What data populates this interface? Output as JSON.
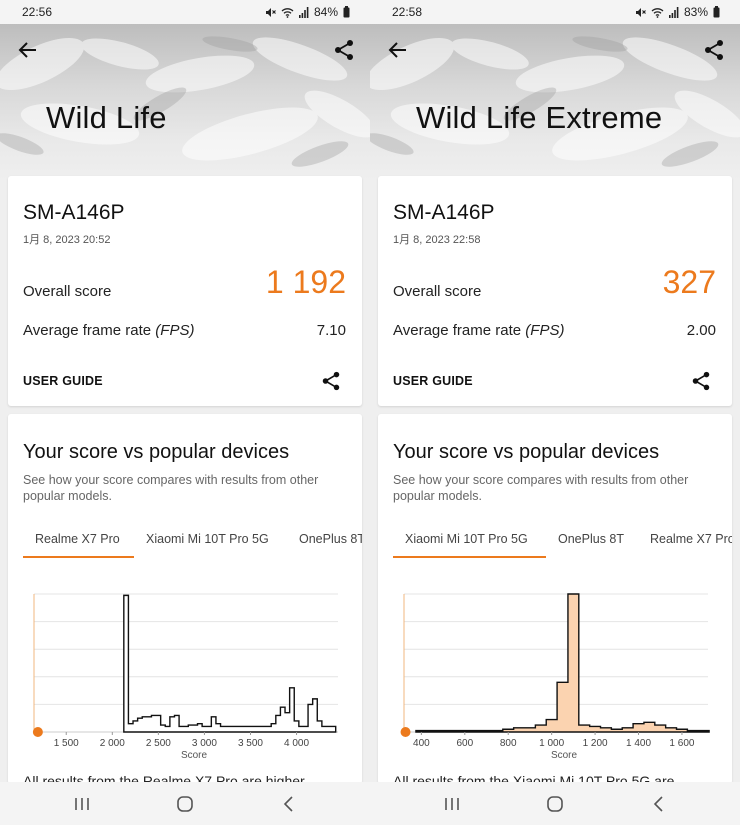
{
  "phones": [
    {
      "status": {
        "time": "22:56",
        "battery": "84%"
      },
      "hero": {
        "title": "Wild Life"
      },
      "result": {
        "device": "SM-A146P",
        "date": "1月 8, 2023 20:52",
        "overall_label": "Overall score",
        "overall_score": "1 192",
        "fps_label_prefix": "Average frame rate ",
        "fps_label_unit": "(FPS)",
        "fps_value": "7.10",
        "user_guide": "USER GUIDE"
      },
      "comparison": {
        "title": "Your score vs popular devices",
        "description": "See how your score compares with results from other popular models.",
        "tabs": [
          "Realme X7 Pro",
          "Xiaomi Mi 10T Pro 5G",
          "OnePlus 8T"
        ],
        "active_tab": 0,
        "xlabel": "Score",
        "result_text": "All results from the Realme X7 Pro are higher"
      },
      "chart_data": {
        "type": "area",
        "xlabel": "Score",
        "xlim": [
          1150,
          4450
        ],
        "ylim": [
          0,
          100
        ],
        "ticks": [
          1500,
          2000,
          2500,
          3000,
          3500,
          4000
        ],
        "tick_labels": [
          "1 500",
          "2 000",
          "2 500",
          "3 000",
          "3 500",
          "4 000"
        ],
        "marker_score": 1192,
        "x": [
          2150,
          2200,
          2250,
          2300,
          2350,
          2400,
          2450,
          2500,
          2550,
          2600,
          2650,
          2700,
          2750,
          2800,
          2850,
          2900,
          2950,
          3000,
          3050,
          3100,
          3150,
          3200,
          3250,
          3300,
          3350,
          3400,
          3450,
          3500,
          3550,
          3600,
          3650,
          3700,
          3750,
          3800,
          3850,
          3900,
          3950,
          4000,
          4050,
          4100,
          4150,
          4200,
          4250,
          4300,
          4350,
          4400
        ],
        "values": [
          99,
          6,
          8,
          10,
          11,
          11,
          12,
          12,
          5,
          4,
          11,
          12,
          4,
          4,
          5,
          5,
          6,
          4,
          4,
          11,
          6,
          4,
          4,
          4,
          4,
          4,
          4,
          4,
          4,
          4,
          4,
          4,
          6,
          12,
          18,
          14,
          32,
          8,
          4,
          4,
          20,
          24,
          8,
          4,
          4,
          4
        ],
        "colors": {
          "line": "#111111",
          "fill": "#ffffff",
          "marker": "#ec7a1d",
          "axis": "#f0b77f"
        }
      }
    },
    {
      "status": {
        "time": "22:58",
        "battery": "83%"
      },
      "hero": {
        "title": "Wild Life Extreme"
      },
      "result": {
        "device": "SM-A146P",
        "date": "1月 8, 2023 22:58",
        "overall_label": "Overall score",
        "overall_score": "327",
        "fps_label_prefix": "Average frame rate ",
        "fps_label_unit": "(FPS)",
        "fps_value": "2.00",
        "user_guide": "USER GUIDE"
      },
      "comparison": {
        "title": "Your score vs popular devices",
        "description": "See how your score compares with results from other popular models.",
        "tabs": [
          "Xiaomi Mi 10T Pro 5G",
          "OnePlus 8T",
          "Realme X7 Pro"
        ],
        "active_tab": 0,
        "xlabel": "Score",
        "result_text": "All results from the Xiaomi Mi 10T Pro 5G are"
      },
      "chart_data": {
        "type": "area",
        "xlabel": "Score",
        "xlim": [
          320,
          1720
        ],
        "ylim": [
          0,
          100
        ],
        "ticks": [
          400,
          600,
          800,
          1000,
          1200,
          1400,
          1600
        ],
        "tick_labels": [
          "400",
          "600",
          "800",
          "1 000",
          "1 200",
          "1 400",
          "1 600"
        ],
        "marker_score": 327,
        "x": [
          400,
          450,
          500,
          550,
          600,
          650,
          700,
          750,
          800,
          850,
          900,
          950,
          1000,
          1050,
          1100,
          1150,
          1200,
          1250,
          1300,
          1350,
          1400,
          1450,
          1500,
          1550,
          1600,
          1650,
          1700
        ],
        "values": [
          1,
          1,
          1,
          1,
          1,
          1,
          1,
          1,
          2,
          3,
          3,
          5,
          9,
          36,
          100,
          5,
          4,
          3,
          2,
          3,
          6,
          7,
          5,
          3,
          2,
          1,
          1
        ],
        "colors": {
          "line": "#111111",
          "fill": "#fbd3b0",
          "marker": "#ec7a1d",
          "axis": "#f0b77f"
        }
      }
    }
  ]
}
